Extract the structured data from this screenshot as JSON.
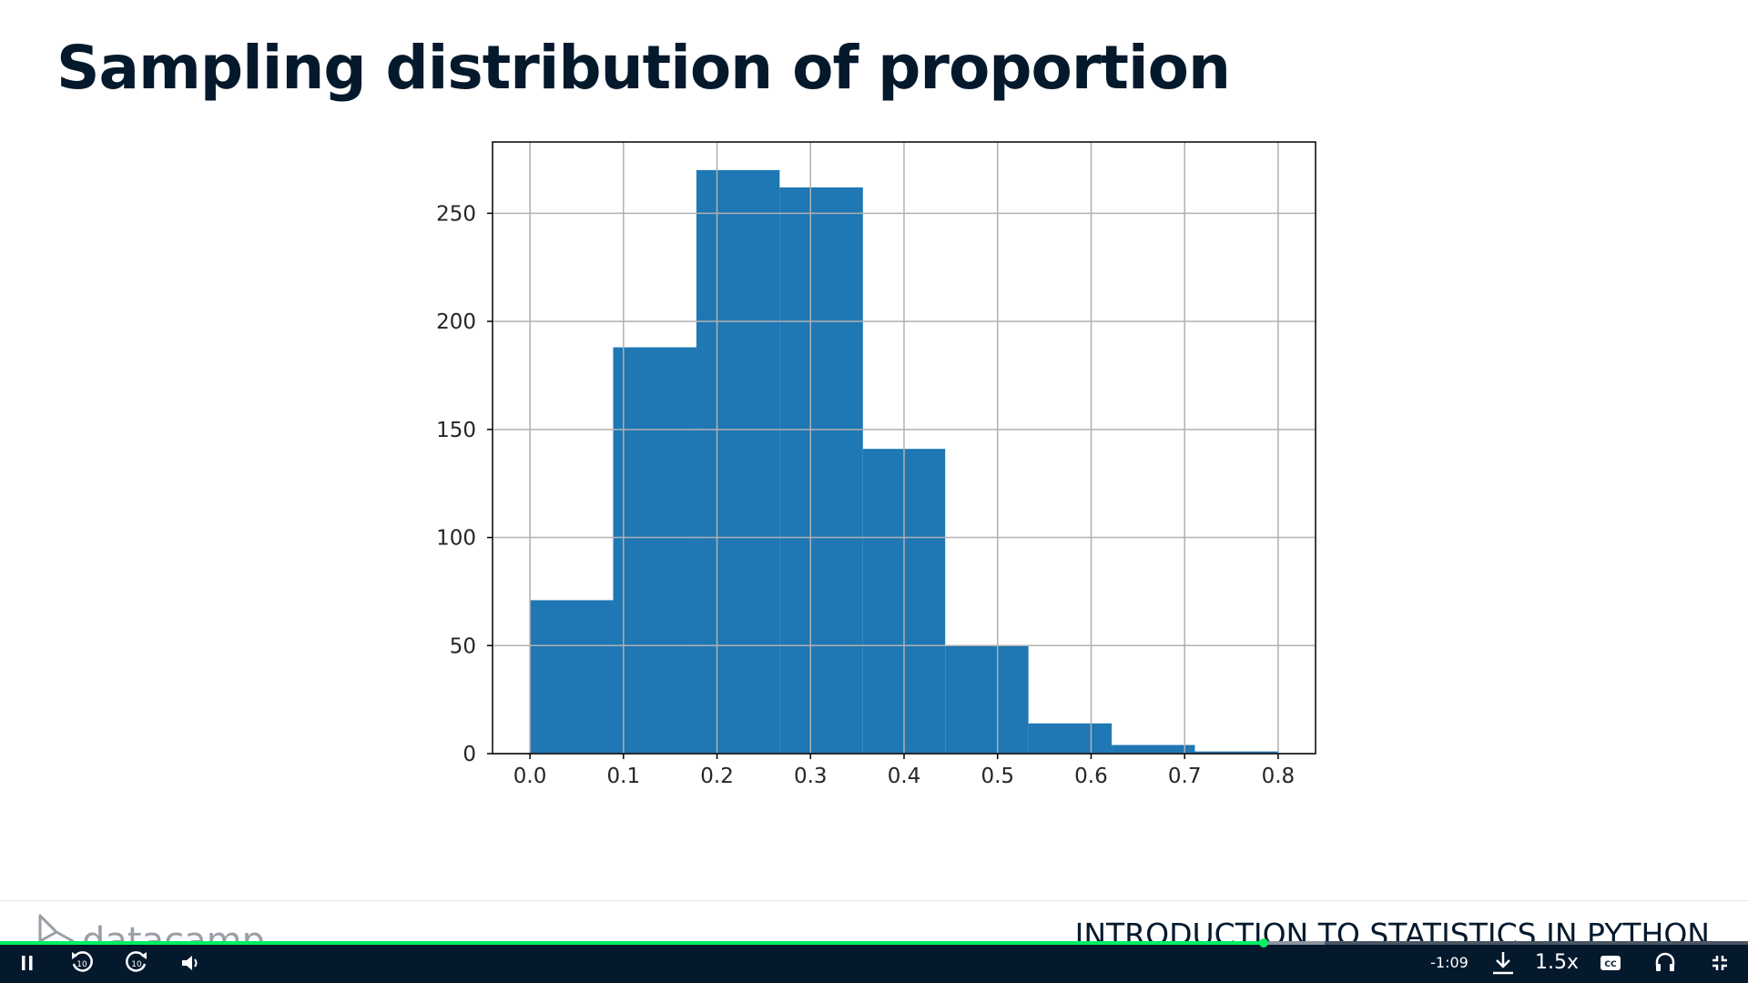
{
  "slide": {
    "title": "Sampling distribution of proportion"
  },
  "chart_data": {
    "type": "bar",
    "subtype": "histogram",
    "bin_edges": [
      0.0,
      0.089,
      0.178,
      0.267,
      0.356,
      0.444,
      0.533,
      0.622,
      0.711,
      0.8
    ],
    "values": [
      71,
      188,
      270,
      262,
      141,
      50,
      14,
      4,
      1
    ],
    "x_ticks": [
      "0.0",
      "0.1",
      "0.2",
      "0.3",
      "0.4",
      "0.5",
      "0.6",
      "0.7",
      "0.8"
    ],
    "y_ticks": [
      "0",
      "50",
      "100",
      "150",
      "200",
      "250"
    ],
    "xlim": [
      -0.04,
      0.84
    ],
    "ylim": [
      0,
      283
    ],
    "grid": true,
    "bar_color": "#1f77b4",
    "title": "",
    "xlabel": "",
    "ylabel": ""
  },
  "footer": {
    "brand": "datacamp",
    "course": "INTRODUCTION TO STATISTICS IN PYTHON"
  },
  "player": {
    "progress": 0.723,
    "buffered": 0.758,
    "time_remaining": "-1:09",
    "speed": "1.5x",
    "skip_seconds": "10",
    "accent_color": "#03ef62",
    "bar_color": "#05192d",
    "icons": [
      "pause-icon",
      "rewind-10-icon",
      "forward-10-icon",
      "volume-icon",
      "download-icon",
      "captions-icon",
      "audio-icon",
      "exit-fullscreen-icon"
    ]
  }
}
